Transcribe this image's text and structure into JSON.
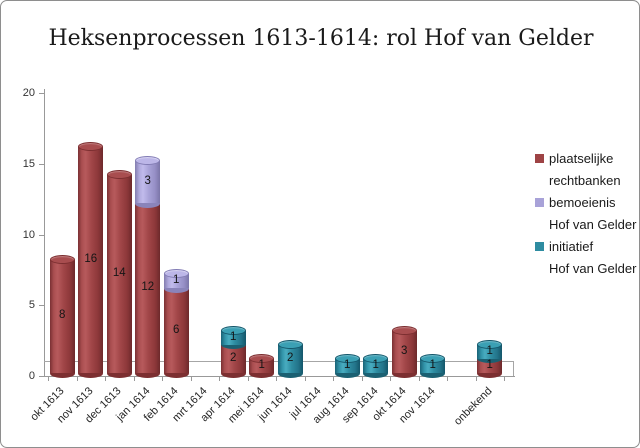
{
  "title": "Heksenprocessen 1613-1614: rol Hof van Gelder",
  "chart_data": {
    "type": "bar",
    "subtype": "3d-cylinder-stacked",
    "title": "Heksenprocessen 1613-1614: rol Hof van Gelder",
    "categories": [
      "okt 1613",
      "nov 1613",
      "dec 1613",
      "jan 1614",
      "feb 1614",
      "mrt 1614",
      "apr 1614",
      "mei 1614",
      "jun 1614",
      "jul 1614",
      "aug 1614",
      "sep 1614",
      "okt 1614",
      "nov 1614",
      "",
      "onbekend"
    ],
    "series": [
      {
        "name": "plaatselijke rechtbanken",
        "color": "#9e4345",
        "values": [
          8,
          16,
          14,
          12,
          6,
          0,
          2,
          1,
          0,
          0,
          0,
          0,
          3,
          0,
          0,
          1
        ]
      },
      {
        "name": "bemoeienis Hof van Gelder",
        "color": "#a8a2d8",
        "values": [
          0,
          0,
          0,
          3,
          1,
          0,
          0,
          0,
          0,
          0,
          0,
          0,
          0,
          0,
          0,
          0
        ]
      },
      {
        "name": "initiatief Hof van Gelder",
        "color": "#2e8ca1",
        "values": [
          0,
          0,
          0,
          0,
          0,
          0,
          1,
          0,
          2,
          0,
          1,
          1,
          0,
          1,
          0,
          1
        ]
      }
    ],
    "ylim": [
      0,
      20
    ],
    "yticks": [
      0,
      5,
      10,
      15,
      20
    ],
    "gridlines": false,
    "data_labels": true,
    "legend_position": "right",
    "xlabel": "",
    "ylabel": ""
  },
  "legend": {
    "items": [
      {
        "lines": [
          "plaatselijke",
          "rechtbanken"
        ],
        "color": "#9e4345"
      },
      {
        "lines": [
          "bemoeienis",
          "Hof van Gelder"
        ],
        "color": "#a8a2d8"
      },
      {
        "lines": [
          "initiatief",
          "Hof van Gelder"
        ],
        "color": "#2e8ca1"
      }
    ]
  }
}
